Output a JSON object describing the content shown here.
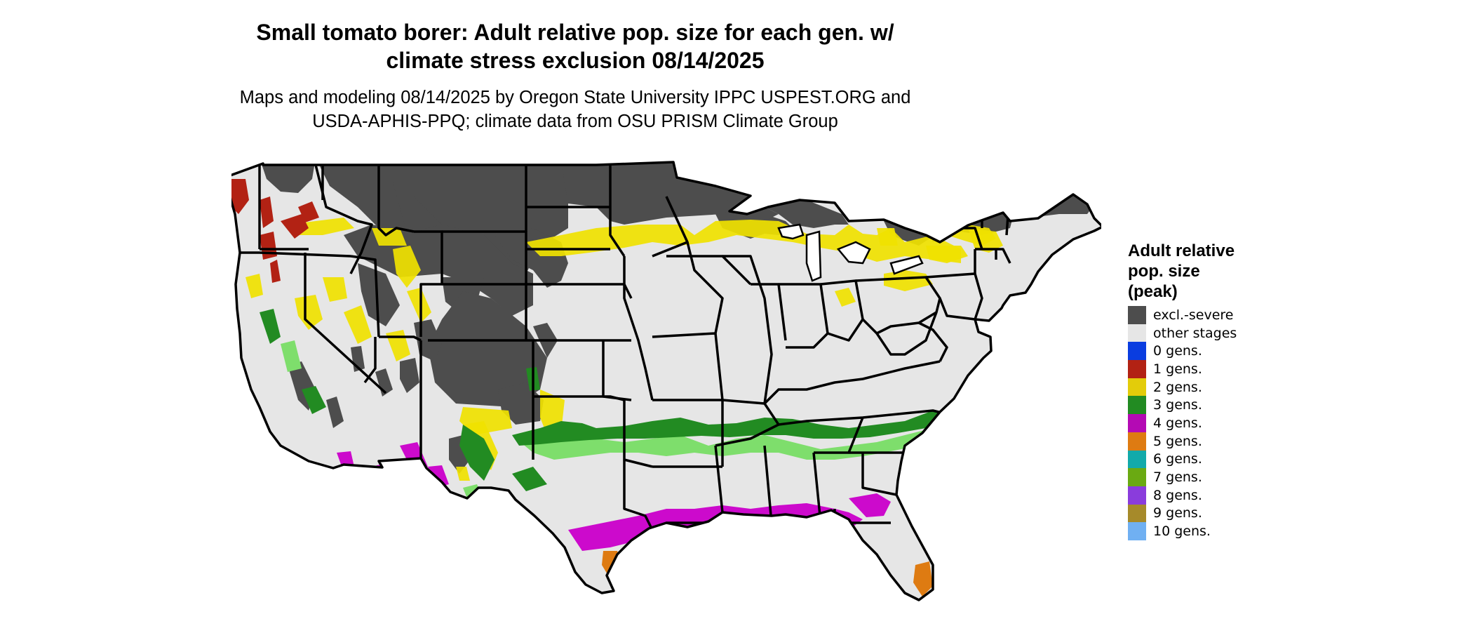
{
  "title_line1": "Small tomato borer: Adult relative pop. size for each gen. w/",
  "title_line2": "climate stress exclusion 08/14/2025",
  "subtitle_line1": "Maps and modeling 08/14/2025 by Oregon State University IPPC USPEST.ORG and",
  "subtitle_line2": "USDA-APHIS-PPQ; climate data from OSU PRISM Climate Group",
  "legend": {
    "title": "Adult relative\npop. size\n(peak)",
    "items": [
      {
        "label": "excl.-severe",
        "color": "#4d4d4d"
      },
      {
        "label": "other stages",
        "color": "#e6e6e6"
      },
      {
        "label": "0 gens.",
        "color": "#0a3de0"
      },
      {
        "label": "1 gens.",
        "color": "#b22214"
      },
      {
        "label": "2 gens.",
        "color": "#e3cc0a"
      },
      {
        "label": "3 gens.",
        "color": "#228b22"
      },
      {
        "label": "4 gens.",
        "color": "#b40ab4"
      },
      {
        "label": "5 gens.",
        "color": "#de7b12"
      },
      {
        "label": "6 gens.",
        "color": "#12aaaa"
      },
      {
        "label": "7 gens.",
        "color": "#6aaa12"
      },
      {
        "label": "8 gens.",
        "color": "#8a3cdc"
      },
      {
        "label": "9 gens.",
        "color": "#a68a2a"
      },
      {
        "label": "10 gens.",
        "color": "#70b0f2"
      }
    ]
  },
  "map_colors": {
    "background": "#e6e6e6",
    "excluded": "#4d4d4d",
    "gen1": "#b22214",
    "gen2": "#f0e200",
    "gen3": "#228b22",
    "gen3_light": "#7ede6c",
    "gen4": "#cc0acc",
    "gen5": "#de7b12",
    "border": "#000000"
  }
}
